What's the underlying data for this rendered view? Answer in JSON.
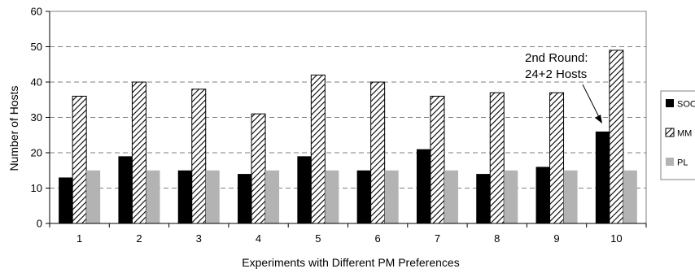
{
  "chart_data": {
    "type": "bar",
    "categories": [
      "1",
      "2",
      "3",
      "4",
      "5",
      "6",
      "7",
      "8",
      "9",
      "10"
    ],
    "series": [
      {
        "name": "SOC",
        "values": [
          13,
          19,
          15,
          14,
          19,
          15,
          21,
          14,
          16,
          26
        ],
        "color": "#000000",
        "pattern": "solid"
      },
      {
        "name": "MM",
        "values": [
          36,
          40,
          38,
          31,
          42,
          40,
          36,
          37,
          37,
          49
        ],
        "color": "#ffffff",
        "pattern": "diagonal-hatch"
      },
      {
        "name": "PL",
        "values": [
          15,
          15,
          15,
          15,
          15,
          15,
          15,
          15,
          15,
          15
        ],
        "color": "#b3b3b3",
        "pattern": "solid"
      }
    ],
    "xlabel": "Experiments with Different PM Preferences",
    "ylabel": "Number of Hosts",
    "ylim": [
      0,
      60
    ],
    "yticks": [
      "0",
      "10",
      "20",
      "30",
      "40",
      "50",
      "60"
    ],
    "grid": "horizontal-dashed",
    "legend_position": "right",
    "annotation": {
      "lines": [
        "2nd Round:",
        "24+2 Hosts"
      ],
      "points_to_category": "10",
      "points_to_series": "SOC"
    }
  }
}
